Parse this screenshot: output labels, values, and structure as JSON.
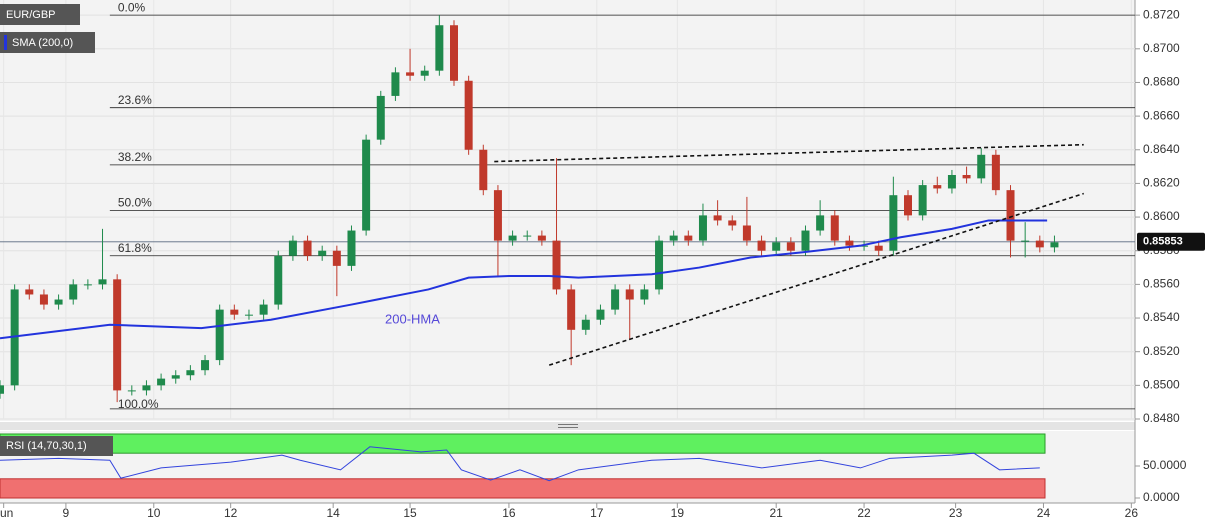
{
  "chart_data": [
    {
      "type": "candlestick",
      "title": "EUR/GBP",
      "indicator": "SMA (200,0)",
      "x": [
        0,
        4,
        8,
        12,
        16,
        20,
        24,
        28,
        32,
        36,
        40,
        44,
        48,
        52,
        56,
        60,
        64,
        68,
        72,
        76,
        80,
        84,
        88,
        92,
        96,
        100,
        104,
        108,
        112,
        116,
        120,
        124,
        128,
        132,
        136,
        140,
        144,
        148,
        152,
        156,
        160,
        164,
        168,
        172,
        176,
        180,
        184,
        188,
        192,
        196,
        200,
        204,
        208,
        212,
        216,
        220,
        224,
        228,
        232,
        236,
        240,
        244,
        248,
        252,
        256,
        260,
        264,
        268,
        272,
        276,
        280,
        284,
        288
      ],
      "open": [
        0.8495,
        0.85,
        0.8557,
        0.8554,
        0.8548,
        0.8551,
        0.856,
        0.856,
        0.8563,
        0.8497,
        0.8497,
        0.85,
        0.8504,
        0.8506,
        0.8509,
        0.8515,
        0.8545,
        0.8542,
        0.8542,
        0.8548,
        0.8577,
        0.8586,
        0.8577,
        0.858,
        0.8571,
        0.8592,
        0.8646,
        0.8672,
        0.8686,
        0.8684,
        0.8687,
        0.8714,
        0.8681,
        0.864,
        0.8616,
        0.8586,
        0.8589,
        0.8589,
        0.8586,
        0.8557,
        0.8533,
        0.8539,
        0.8545,
        0.8557,
        0.8551,
        0.8557,
        0.8586,
        0.8589,
        0.8586,
        0.8601,
        0.8598,
        0.8595,
        0.8586,
        0.858,
        0.8585,
        0.858,
        0.8592,
        0.8601,
        0.8586,
        0.8583,
        0.8583,
        0.858,
        0.8613,
        0.8601,
        0.8619,
        0.8617,
        0.8625,
        0.8623,
        0.8637,
        0.8616,
        0.8586,
        0.8586,
        0.8582
      ],
      "high": [
        0.8503,
        0.856,
        0.856,
        0.8557,
        0.8554,
        0.8563,
        0.8563,
        0.8593,
        0.8566,
        0.85,
        0.8503,
        0.8507,
        0.8509,
        0.8512,
        0.8518,
        0.8548,
        0.8548,
        0.8545,
        0.8551,
        0.858,
        0.8589,
        0.8589,
        0.8583,
        0.8583,
        0.8595,
        0.8649,
        0.8675,
        0.8689,
        0.87,
        0.869,
        0.872,
        0.8717,
        0.8684,
        0.8643,
        0.8619,
        0.8592,
        0.8592,
        0.8592,
        0.8635,
        0.856,
        0.8542,
        0.8548,
        0.856,
        0.856,
        0.856,
        0.8589,
        0.8592,
        0.8592,
        0.8608,
        0.861,
        0.8601,
        0.8612,
        0.8589,
        0.8588,
        0.8588,
        0.8595,
        0.861,
        0.8604,
        0.8589,
        0.8586,
        0.8586,
        0.8624,
        0.8616,
        0.8622,
        0.8624,
        0.8628,
        0.863,
        0.8641,
        0.864,
        0.8619,
        0.8597,
        0.8589,
        0.8589
      ],
      "low": [
        0.8492,
        0.8497,
        0.8551,
        0.8545,
        0.8545,
        0.8548,
        0.8557,
        0.8557,
        0.849,
        0.8494,
        0.8494,
        0.8497,
        0.8501,
        0.8503,
        0.8506,
        0.8512,
        0.8539,
        0.8539,
        0.8539,
        0.8545,
        0.8574,
        0.8574,
        0.8574,
        0.8553,
        0.8568,
        0.8589,
        0.8643,
        0.8669,
        0.8681,
        0.8681,
        0.8684,
        0.8678,
        0.8637,
        0.8613,
        0.8565,
        0.8583,
        0.8586,
        0.8583,
        0.8554,
        0.8512,
        0.853,
        0.8536,
        0.8542,
        0.8527,
        0.8548,
        0.8554,
        0.8583,
        0.8583,
        0.8583,
        0.8595,
        0.8592,
        0.8583,
        0.8577,
        0.8577,
        0.8577,
        0.8577,
        0.8589,
        0.8583,
        0.858,
        0.858,
        0.8577,
        0.8577,
        0.8598,
        0.8598,
        0.8614,
        0.8614,
        0.862,
        0.862,
        0.8613,
        0.8576,
        0.8576,
        0.8579,
        0.8579
      ],
      "close": [
        0.85,
        0.8557,
        0.8554,
        0.8548,
        0.8551,
        0.856,
        0.856,
        0.8563,
        0.8497,
        0.8497,
        0.85,
        0.8504,
        0.8506,
        0.8509,
        0.8515,
        0.8545,
        0.8542,
        0.8542,
        0.8548,
        0.8577,
        0.8586,
        0.8577,
        0.858,
        0.8571,
        0.8592,
        0.8646,
        0.8672,
        0.8686,
        0.8684,
        0.8687,
        0.8714,
        0.8681,
        0.864,
        0.8616,
        0.8586,
        0.8589,
        0.8589,
        0.8586,
        0.8557,
        0.8533,
        0.8539,
        0.8545,
        0.8557,
        0.8551,
        0.8557,
        0.8586,
        0.8589,
        0.8586,
        0.8601,
        0.8598,
        0.8595,
        0.8586,
        0.858,
        0.8585,
        0.858,
        0.8592,
        0.8601,
        0.8586,
        0.8583,
        0.8583,
        0.858,
        0.8613,
        0.8601,
        0.8619,
        0.8617,
        0.8625,
        0.8623,
        0.8637,
        0.8616,
        0.8586,
        0.8586,
        0.8582,
        0.8585
      ],
      "up_color": "#1f8a4c",
      "down_color": "#c0392b",
      "series": [
        {
          "name": "200-HMA",
          "color": "#2233dd",
          "x": [
            0,
            30,
            55,
            74,
            96,
            117,
            128,
            139,
            150,
            158,
            178,
            191,
            205,
            219,
            235,
            246,
            260,
            270,
            286
          ],
          "values": [
            0.8528,
            0.8536,
            0.8534,
            0.8539,
            0.8548,
            0.8557,
            0.8564,
            0.8565,
            0.8565,
            0.8564,
            0.8566,
            0.857,
            0.8576,
            0.8579,
            0.8583,
            0.8588,
            0.8593,
            0.8598,
            0.8598
          ]
        }
      ],
      "fib_start_x": 30,
      "fib_levels": [
        {
          "label": "0.0%",
          "value": 0.872
        },
        {
          "label": "23.6%",
          "value": 0.8665
        },
        {
          "label": "38.2%",
          "value": 0.8631
        },
        {
          "label": "50.0%",
          "value": 0.8604
        },
        {
          "label": "61.8%",
          "value": 0.8577
        },
        {
          "label": "100.0%",
          "value": 0.8486
        }
      ],
      "trendlines": [
        {
          "x": [
            135,
            296
          ],
          "values": [
            0.8633,
            0.8643
          ]
        },
        {
          "x": [
            150,
            296
          ],
          "values": [
            0.8512,
            0.8614
          ]
        }
      ],
      "last_price": 0.85853,
      "xlim": [
        0,
        310
      ],
      "xticks": [
        {
          "value": 1,
          "label": "Jun"
        },
        {
          "value": 18,
          "label": "9"
        },
        {
          "value": 42,
          "label": "10"
        },
        {
          "value": 63,
          "label": "12"
        },
        {
          "value": 91,
          "label": "14"
        },
        {
          "value": 112,
          "label": "15"
        },
        {
          "value": 139,
          "label": "16"
        },
        {
          "value": 163,
          "label": "17"
        },
        {
          "value": 185,
          "label": "19"
        },
        {
          "value": 212,
          "label": "21"
        },
        {
          "value": 236,
          "label": "22"
        },
        {
          "value": 261,
          "label": "23"
        },
        {
          "value": 285,
          "label": "24"
        },
        {
          "value": 309,
          "label": "26"
        }
      ],
      "ylim": [
        0.848,
        0.8729
      ],
      "yticks": [
        {
          "value": 0.848,
          "label": "0.8480"
        },
        {
          "value": 0.85,
          "label": "0.8500"
        },
        {
          "value": 0.852,
          "label": "0.8520"
        },
        {
          "value": 0.854,
          "label": "0.8540"
        },
        {
          "value": 0.856,
          "label": "0.8560"
        },
        {
          "value": 0.858,
          "label": "0.8580"
        },
        {
          "value": 0.86,
          "label": "0.8600"
        },
        {
          "value": 0.862,
          "label": "0.8620"
        },
        {
          "value": 0.864,
          "label": "0.8640"
        },
        {
          "value": 0.866,
          "label": "0.8660"
        },
        {
          "value": 0.868,
          "label": "0.8680"
        },
        {
          "value": 0.87,
          "label": "0.8700"
        },
        {
          "value": 0.872,
          "label": "0.8720"
        }
      ],
      "grid": true
    },
    {
      "type": "line",
      "title": "RSI (14,70,30,1)",
      "color": "#3344dd",
      "x": [
        0,
        16,
        30,
        33,
        44,
        63,
        77,
        82,
        93,
        101,
        115,
        122,
        126,
        134,
        142,
        150,
        158,
        178,
        191,
        208,
        224,
        235,
        243,
        260,
        266,
        273,
        284
      ],
      "values": [
        59,
        62,
        59,
        31,
        47,
        56,
        67,
        59,
        44,
        80,
        72,
        75,
        44,
        28,
        44,
        27,
        44,
        59,
        62,
        47,
        59,
        47,
        62,
        67,
        70,
        44,
        47
      ],
      "levels": [
        70,
        30
      ],
      "ylim": [
        0,
        100
      ],
      "yticks": [
        {
          "value": 50,
          "label": "50.0000"
        },
        {
          "value": 0,
          "label": "0.0000"
        }
      ]
    }
  ]
}
